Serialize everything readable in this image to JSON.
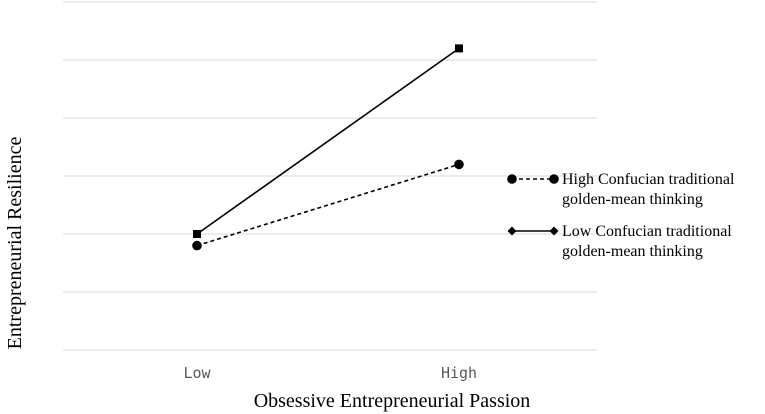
{
  "chart_data": {
    "type": "line",
    "title": "",
    "xlabel": "Obsessive Entrepreneurial Passion",
    "ylabel": "Entrepreneurial Resilience",
    "categories": [
      "Low",
      "High"
    ],
    "ylim": [
      0,
      6
    ],
    "grid": true,
    "legend_position": "right",
    "series": [
      {
        "name": "High Confucian traditional golden-mean thinking",
        "name_lines": [
          "High Confucian traditional",
          "golden-mean thinking"
        ],
        "values": [
          1.8,
          3.2
        ],
        "line_style": "dashed",
        "marker": "circle",
        "color": "#000000"
      },
      {
        "name": "Low Confucian traditional golden-mean thinking",
        "name_lines": [
          "Low Confucian traditional",
          "golden-mean thinking"
        ],
        "values": [
          2.0,
          5.2
        ],
        "line_style": "solid",
        "marker": "square",
        "legend_marker": "diamond",
        "color": "#000000"
      }
    ]
  },
  "colors": {
    "gridline": "#d9d9d9",
    "tick_text": "#595959",
    "series": "#000000"
  }
}
